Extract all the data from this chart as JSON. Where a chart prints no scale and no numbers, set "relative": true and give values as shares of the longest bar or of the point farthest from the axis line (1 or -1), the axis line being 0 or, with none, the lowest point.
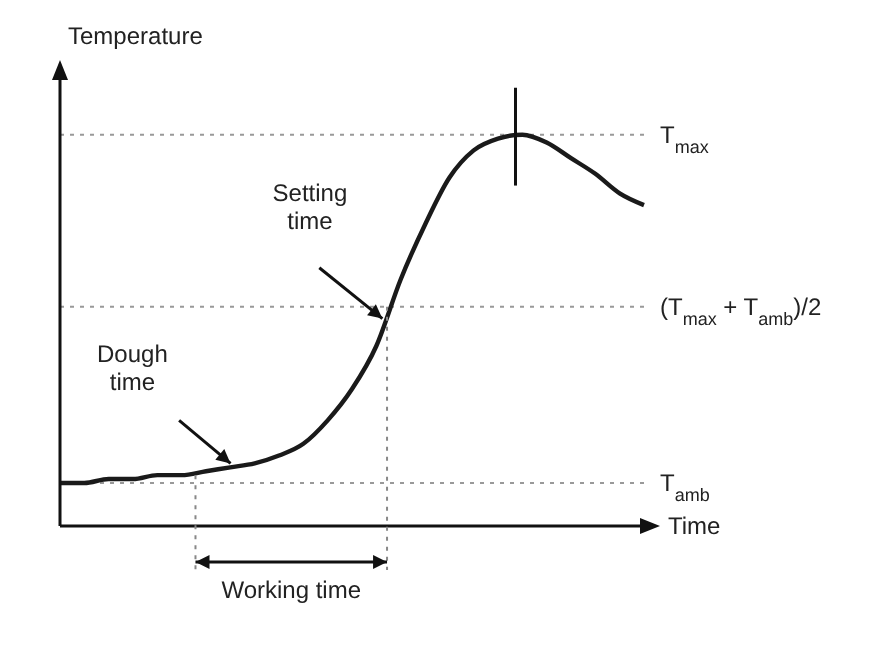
{
  "chart_data": {
    "type": "line",
    "relative": true,
    "ylabel": "Temperature",
    "xlabel": "Time",
    "marker": "none",
    "line_style": "solid",
    "color": "#1a1a1a",
    "categories": [
      null,
      null,
      null,
      null,
      null,
      null,
      null,
      null,
      null,
      null,
      null,
      null,
      null,
      null,
      null,
      null,
      null,
      null,
      null,
      null,
      null,
      null,
      null,
      null,
      null
    ],
    "values": [
      0.11,
      0.11,
      0.12,
      0.12,
      0.13,
      0.13,
      0.14,
      0.15,
      0.16,
      0.18,
      0.21,
      0.27,
      0.35,
      0.46,
      0.63,
      0.77,
      0.89,
      0.96,
      0.99,
      1,
      0.98,
      0.94,
      0.9,
      0.85,
      0.82
    ],
    "ref_lines": [
      {
        "axis": "y",
        "value": 1,
        "label": "T$_{max}$",
        "color": "#999999",
        "line_style": "dotted"
      },
      {
        "axis": "y",
        "value": 0.56,
        "label": "(T$_{max}$ + T$_{amb}$)/2",
        "color": "#999999",
        "line_style": "dotted"
      },
      {
        "axis": "y",
        "value": 0.11,
        "label": "T$_{amb}$",
        "color": "#999999",
        "line_style": "dotted"
      }
    ],
    "annotations": [
      "Setting time",
      "Dough time",
      "Working time"
    ]
  }
}
